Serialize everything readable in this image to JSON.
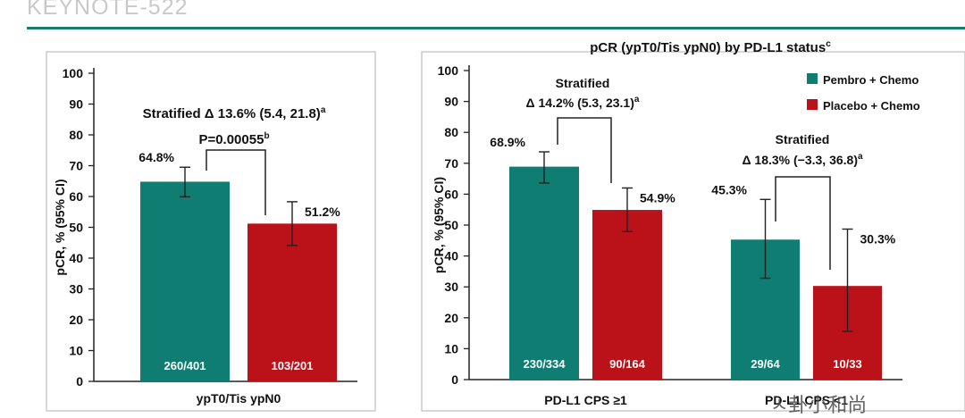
{
  "header": {
    "title": "KEYNOTE-522"
  },
  "watermark": {
    "text": "ㅅ卦小和尚"
  },
  "colors": {
    "pembro": "#0f7d72",
    "placebo": "#bb1119",
    "accent_rule": "#1a7a72"
  },
  "chart_data": [
    {
      "type": "bar",
      "ylabel": "pCR, % (95% CI)",
      "ylim": [
        0,
        100
      ],
      "yticks": [
        0,
        10,
        20,
        30,
        40,
        50,
        60,
        70,
        80,
        90,
        100
      ],
      "categories": [
        "ypT0/Tis ypN0"
      ],
      "series": [
        {
          "values": [
            64.8
          ],
          "ci": [
            [
              59.9,
              69.5
            ]
          ],
          "value_labels": [
            "64.8%"
          ],
          "n_labels": [
            "260/401"
          ]
        },
        {
          "values": [
            51.2
          ],
          "ci": [
            [
              44.1,
              58.3
            ]
          ],
          "value_labels": [
            "51.2%"
          ],
          "n_labels": [
            "103/201"
          ]
        }
      ],
      "annotations": [
        {
          "line1": "Stratified Δ 13.6% (5.4, 21.8)",
          "line1_sup": "a",
          "line2": "P=0.00055",
          "line2_sup": "b"
        }
      ]
    },
    {
      "type": "bar",
      "title": "pCR (ypT0/Tis ypN0) by PD-L1 status",
      "title_sup": "c",
      "ylabel": "pCR, % (95% CI)",
      "ylim": [
        0,
        100
      ],
      "yticks": [
        0,
        10,
        20,
        30,
        40,
        50,
        60,
        70,
        80,
        90,
        100
      ],
      "categories": [
        "PD-L1 CPS ≥1",
        "PD-L1 CPS <1"
      ],
      "series": [
        {
          "name": "Pembro + Chemo",
          "values": [
            68.9,
            45.3
          ],
          "ci": [
            [
              63.6,
              73.7
            ],
            [
              32.8,
              58.3
            ]
          ],
          "value_labels": [
            "68.9%",
            "45.3%"
          ],
          "n_labels": [
            "230/334",
            "29/64"
          ]
        },
        {
          "name": "Placebo + Chemo",
          "values": [
            54.9,
            30.3
          ],
          "ci": [
            [
              47.9,
              62.0
            ],
            [
              15.6,
              48.7
            ]
          ],
          "value_labels": [
            "54.9%",
            "30.3%"
          ],
          "n_labels": [
            "90/164",
            "10/33"
          ]
        }
      ],
      "annotations": [
        {
          "line1": "Stratified",
          "line2": "Δ 14.2% (5.3, 23.1)",
          "line2_sup": "a"
        },
        {
          "line1": "Stratified",
          "line2": "Δ 18.3% (−3.3, 36.8)",
          "line2_sup": "a"
        }
      ],
      "legend": "top-right"
    }
  ]
}
